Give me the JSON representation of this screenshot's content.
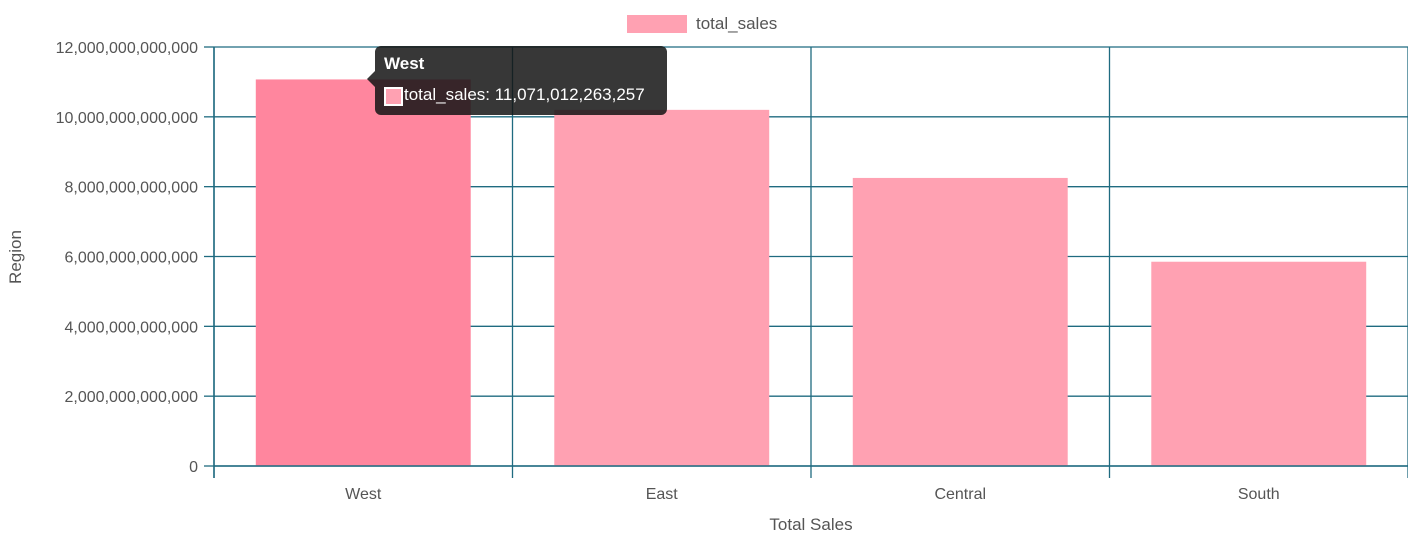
{
  "chart_data": {
    "type": "bar",
    "categories": [
      "West",
      "East",
      "Central",
      "South"
    ],
    "series": [
      {
        "name": "total_sales",
        "values": [
          11071012263257,
          10200000000000,
          8250000000000,
          5850000000000
        ]
      }
    ],
    "ylim": [
      0,
      12000000000000
    ],
    "yticks": [
      "0",
      "2,000,000,000,000",
      "4,000,000,000,000",
      "6,000,000,000,000",
      "8,000,000,000,000",
      "10,000,000,000,000",
      "12,000,000,000,000"
    ],
    "xlabel": "Total Sales",
    "ylabel": "Region",
    "legend": {
      "position": "top-center"
    },
    "grid": true,
    "colors": {
      "bar": "#ffa1b2",
      "bar_hover": "#ff869e",
      "grid": "#1f6b80"
    }
  },
  "tooltip": {
    "title": "West",
    "label": "total_sales: 11,071,012,263,257"
  }
}
